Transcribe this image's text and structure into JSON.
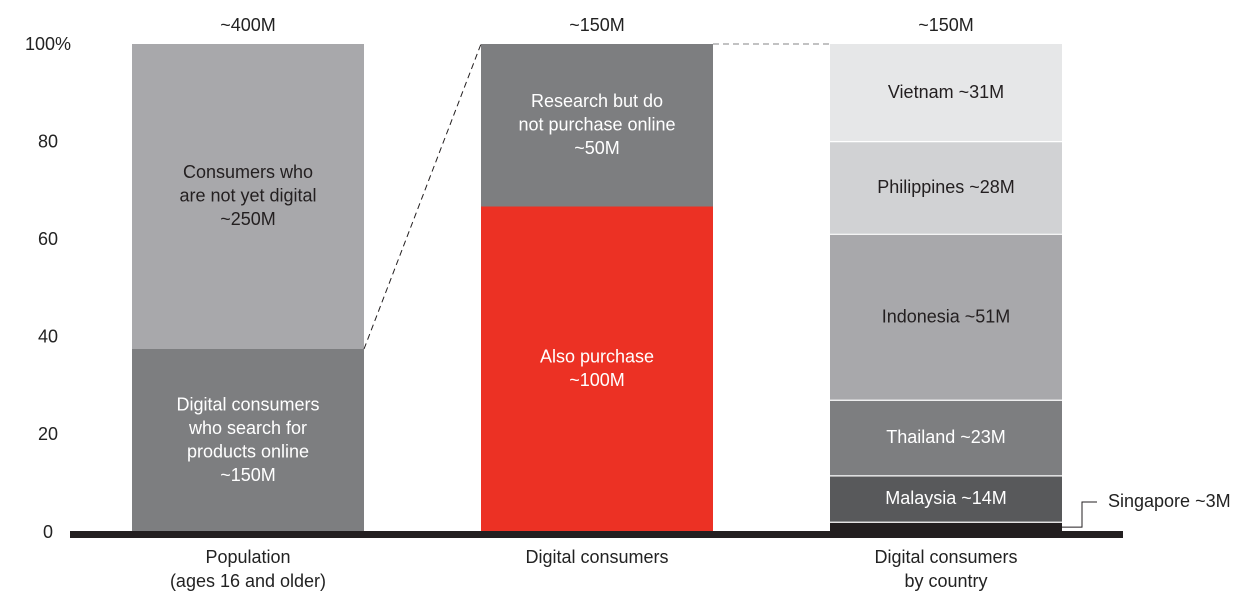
{
  "colors": {
    "gray_light": "#a8a8ab",
    "gray_dark": "#7d7e80",
    "red": "#ec3124",
    "vietnam": "#e6e7e8",
    "philippines": "#d1d2d4",
    "indonesia": "#a8a8ab",
    "thailand": "#7d7e80",
    "malaysia": "#58595b",
    "singapore": "#231f20",
    "axis": "#231f20"
  },
  "chart_data": {
    "type": "bar",
    "stacked": true,
    "percent": true,
    "ylim": [
      0,
      100
    ],
    "y_ticks": [
      "0",
      "20",
      "40",
      "60",
      "80",
      "100%"
    ],
    "categories": [
      "Population\n(ages 16 and older)",
      "Digital consumers",
      "Digital consumers\nby country"
    ],
    "totals": [
      "~400M",
      "~150M",
      "~150M"
    ],
    "bars": [
      {
        "segments": [
          {
            "label": "Digital consumers\nwho search for\nproducts online\n~150M",
            "value": 37.5,
            "color_key": "gray_dark",
            "text": "light"
          },
          {
            "label": "Consumers who\nare not yet digital\n~250M",
            "value": 62.5,
            "color_key": "gray_light",
            "text": "dark"
          }
        ]
      },
      {
        "segments": [
          {
            "label": "Also purchase\n~100M",
            "value": 66.7,
            "color_key": "red",
            "text": "light"
          },
          {
            "label": "Research but do\nnot purchase online\n~50M",
            "value": 33.3,
            "color_key": "gray_dark",
            "text": "light"
          }
        ]
      },
      {
        "segments": [
          {
            "label": "Singapore ~3M",
            "value": 2,
            "color_key": "singapore",
            "text": "none",
            "callout": true
          },
          {
            "label": "Malaysia ~14M",
            "value": 9.5,
            "color_key": "malaysia",
            "text": "light"
          },
          {
            "label": "Thailand ~23M",
            "value": 15.5,
            "color_key": "thailand",
            "text": "light"
          },
          {
            "label": "Indonesia ~51M",
            "value": 34,
            "color_key": "indonesia",
            "text": "dark"
          },
          {
            "label": "Philippines ~28M",
            "value": 19,
            "color_key": "philippines",
            "text": "dark"
          },
          {
            "label": "Vietnam ~31M",
            "value": 20,
            "color_key": "vietnam",
            "text": "dark"
          }
        ]
      }
    ]
  }
}
